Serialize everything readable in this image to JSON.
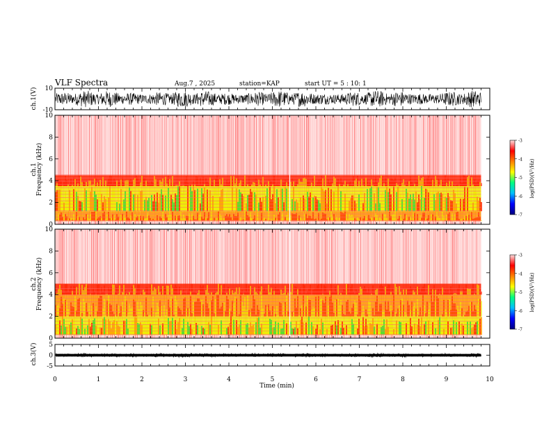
{
  "header": {
    "title": "VLF Spectra",
    "date": "Aug.7 , 2025",
    "station": "station=KAP",
    "start": "start UT = 5 : 10: 1"
  },
  "colors": {
    "noise_low": "#ff8888",
    "band_red": "#ff2200",
    "band_orange": "#ff9900",
    "band_yellow": "#eeee00",
    "band_green": "#33dd33",
    "colorbar": [
      "#000080",
      "#0000ff",
      "#00bfff",
      "#00ff80",
      "#ffff00",
      "#ff8000",
      "#ff0000",
      "#ffdddd"
    ]
  },
  "chart_data": [
    {
      "type": "line",
      "name": "ch1-waveform",
      "ylabel": "ch.1(V)",
      "ylim": [
        -10,
        10
      ],
      "yticks": [
        "10",
        "-10"
      ],
      "description_series": "dense signal oscillating roughly between -8 and 8 V",
      "amplitude_v": 8
    },
    {
      "type": "heatmap",
      "name": "ch1-spectrogram",
      "ylabel_line1": "ch.1",
      "ylabel_line2": "Frequency (kHz)",
      "ylim": [
        0,
        10
      ],
      "yticks": [
        "0",
        "2",
        "4",
        "6",
        "8",
        "10"
      ],
      "colorbar": {
        "label": "log(PSD)(V²/Hz)",
        "ticks": [
          "-3",
          "-4",
          "-5",
          "-6",
          "-7"
        ],
        "range": [
          -7,
          -3
        ]
      },
      "bands": [
        {
          "from_khz": 0.3,
          "to_khz": 1.2,
          "level": "orange"
        },
        {
          "from_khz": 1.2,
          "to_khz": 3.5,
          "level": "yellow-green"
        },
        {
          "from_khz": 3.5,
          "to_khz": 4.5,
          "level": "red"
        },
        {
          "from_khz": 4.5,
          "to_khz": 10,
          "level": "light-red"
        }
      ]
    },
    {
      "type": "heatmap",
      "name": "ch2-spectrogram",
      "ylabel_line1": "ch.2",
      "ylabel_line2": "Frequency (kHz)",
      "ylim": [
        0,
        10
      ],
      "yticks": [
        "0",
        "2",
        "4",
        "6",
        "8",
        "10"
      ],
      "colorbar": {
        "label": "log(PSD)(V²/Hz)",
        "ticks": [
          "-3",
          "-4",
          "-5",
          "-6",
          "-7"
        ],
        "range": [
          -7,
          -3
        ]
      },
      "bands": [
        {
          "from_khz": 0.3,
          "to_khz": 2.0,
          "level": "yellow-green"
        },
        {
          "from_khz": 2.0,
          "to_khz": 4.0,
          "level": "orange"
        },
        {
          "from_khz": 4.0,
          "to_khz": 5.0,
          "level": "red"
        },
        {
          "from_khz": 5.0,
          "to_khz": 10,
          "level": "light-red"
        }
      ]
    },
    {
      "type": "line",
      "name": "ch3-waveform",
      "ylabel": "ch.3(V)",
      "ylim": [
        -5,
        5
      ],
      "yticks": [
        "5",
        "0",
        "-5"
      ],
      "amplitude_v": 0.6
    }
  ],
  "xaxis": {
    "label": "Time (min)",
    "range": [
      0,
      10
    ],
    "ticks": [
      "0",
      "1",
      "2",
      "3",
      "4",
      "5",
      "6",
      "7",
      "8",
      "9",
      "10"
    ],
    "data_end_min": 9.8
  }
}
